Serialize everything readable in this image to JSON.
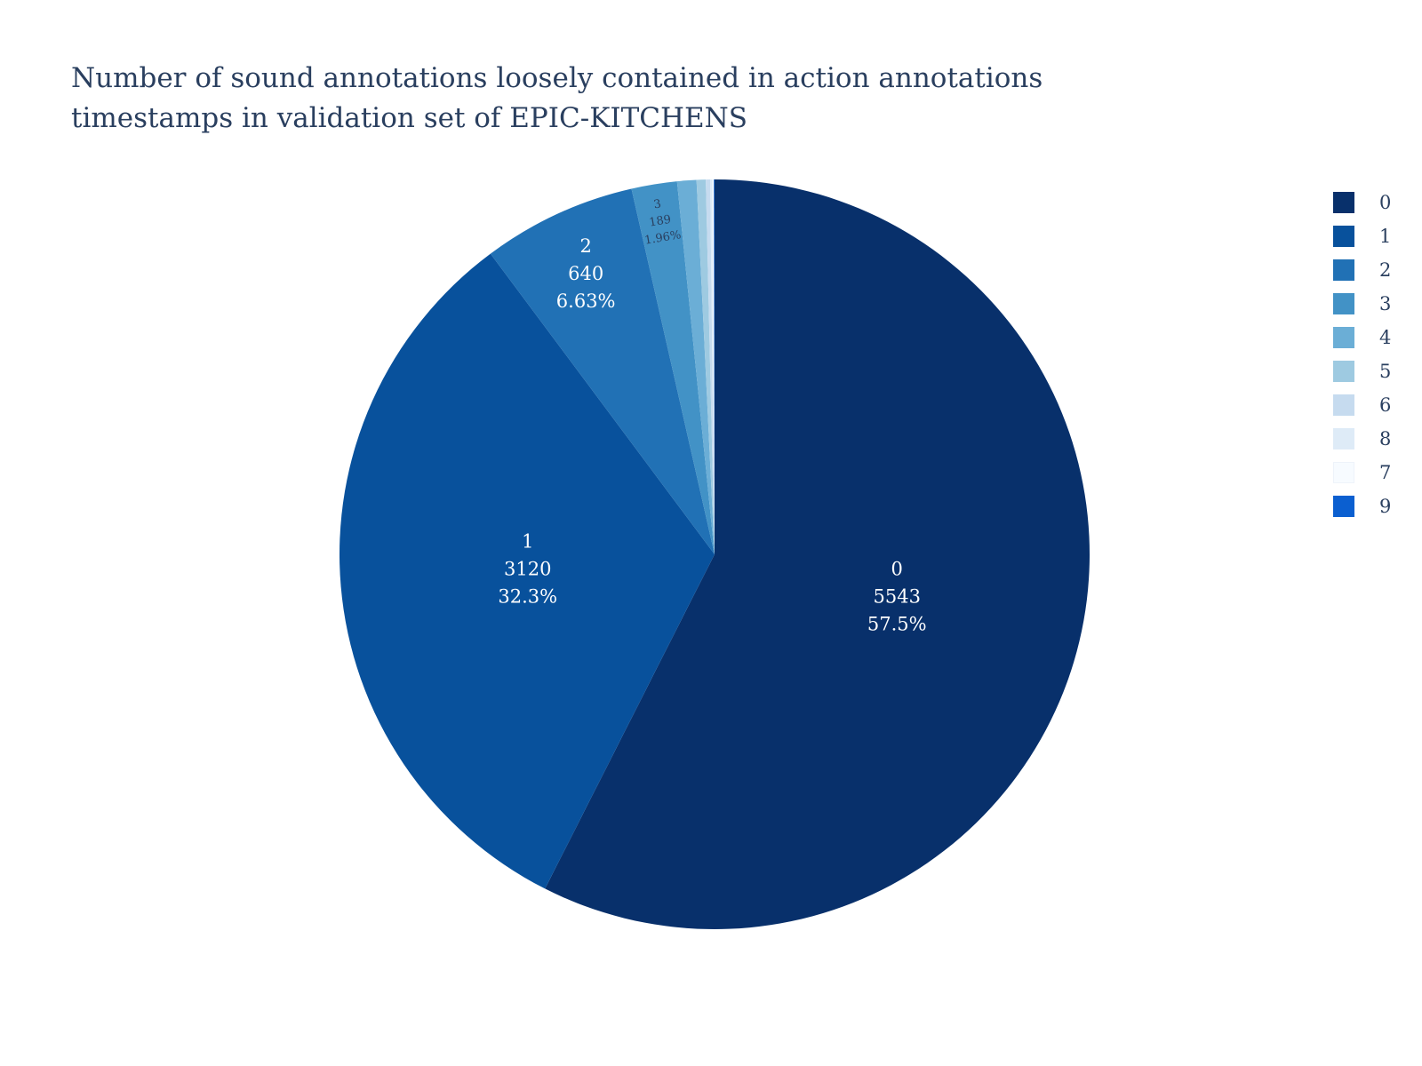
{
  "chart_data": {
    "type": "pie",
    "title": [
      "Number of sound annotations loosely contained in action annotations",
      "timestamps in validation set of EPIC-KITCHENS"
    ],
    "slices": [
      {
        "label": "0",
        "value": 5543,
        "percent": "57.5%",
        "color": "#08306b"
      },
      {
        "label": "1",
        "value": 3120,
        "percent": "32.3%",
        "color": "#08519c"
      },
      {
        "label": "2",
        "value": 640,
        "percent": "6.63%",
        "color": "#2171b5"
      },
      {
        "label": "3",
        "value": 189,
        "percent": "1.96%",
        "color": "#4292c6"
      },
      {
        "label": "4",
        "value": 80,
        "percent": "0.83%",
        "color": "#6baed6"
      },
      {
        "label": "5",
        "value": 38,
        "percent": "0.39%",
        "color": "#9ecae1"
      },
      {
        "label": "6",
        "value": 18,
        "percent": "0.19%",
        "color": "#c6dbef"
      },
      {
        "label": "8",
        "value": 9,
        "percent": "0.09%",
        "color": "#deebf7"
      },
      {
        "label": "7",
        "value": 6,
        "percent": "0.06%",
        "color": "#f7fbff"
      },
      {
        "label": "9",
        "value": 3,
        "percent": "0.03%",
        "color": "#0b5fd0"
      }
    ],
    "legend_position": "right",
    "text_info": "label+value+percent"
  }
}
